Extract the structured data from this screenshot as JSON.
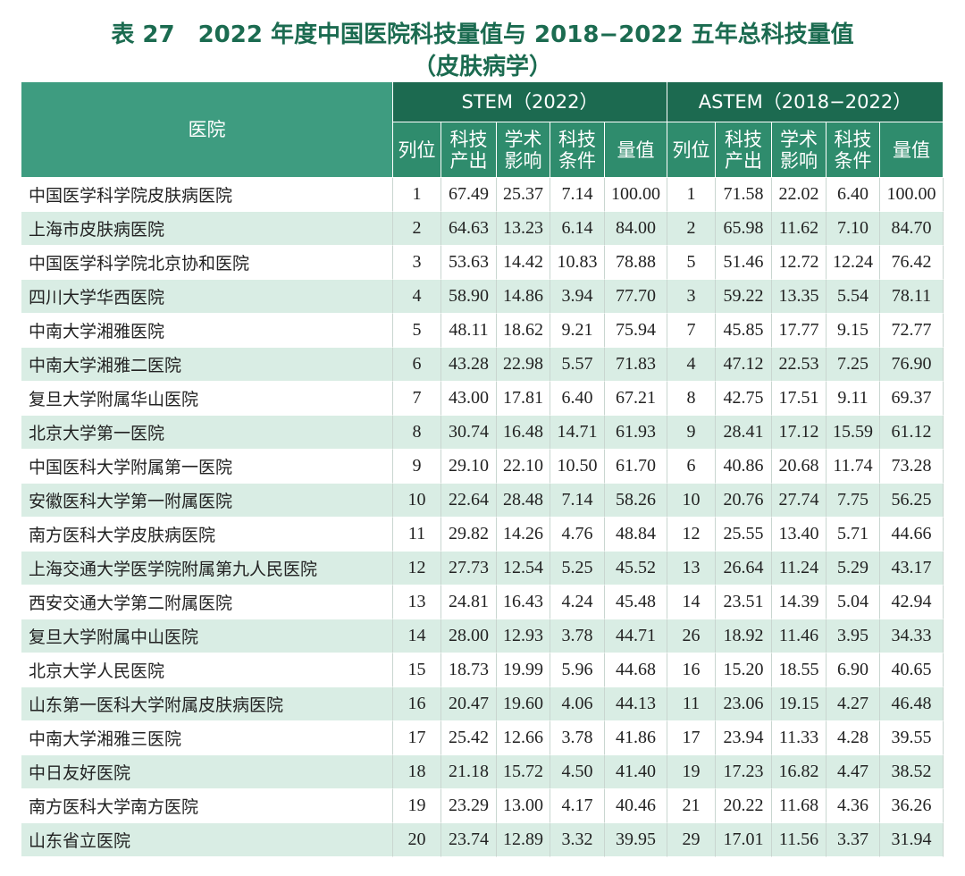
{
  "header": {
    "title": "表 27　2022 年度中国医院科技量值与 2018−2022 五年总科技量值",
    "subtitle": "（皮肤病学）"
  },
  "table": {
    "hospital_header": "医院",
    "groups": [
      {
        "name": "STEM（2022）",
        "columns": [
          [
            "列位"
          ],
          [
            "科技",
            "产出"
          ],
          [
            "学术",
            "影响"
          ],
          [
            "科技",
            "条件"
          ],
          [
            "量值"
          ]
        ]
      },
      {
        "name": "ASTEM（2018−2022）",
        "columns": [
          [
            "列位"
          ],
          [
            "科技",
            "产出"
          ],
          [
            "学术",
            "影响"
          ],
          [
            "科技",
            "条件"
          ],
          [
            "量值"
          ]
        ]
      }
    ],
    "rows": [
      [
        "中国医学科学院皮肤病医院",
        "1",
        "67.49",
        "25.37",
        "7.14",
        "100.00",
        "1",
        "71.58",
        "22.02",
        "6.40",
        "100.00"
      ],
      [
        "上海市皮肤病医院",
        "2",
        "64.63",
        "13.23",
        "6.14",
        "84.00",
        "2",
        "65.98",
        "11.62",
        "7.10",
        "84.70"
      ],
      [
        "中国医学科学院北京协和医院",
        "3",
        "53.63",
        "14.42",
        "10.83",
        "78.88",
        "5",
        "51.46",
        "12.72",
        "12.24",
        "76.42"
      ],
      [
        "四川大学华西医院",
        "4",
        "58.90",
        "14.86",
        "3.94",
        "77.70",
        "3",
        "59.22",
        "13.35",
        "5.54",
        "78.11"
      ],
      [
        "中南大学湘雅医院",
        "5",
        "48.11",
        "18.62",
        "9.21",
        "75.94",
        "7",
        "45.85",
        "17.77",
        "9.15",
        "72.77"
      ],
      [
        "中南大学湘雅二医院",
        "6",
        "43.28",
        "22.98",
        "5.57",
        "71.83",
        "4",
        "47.12",
        "22.53",
        "7.25",
        "76.90"
      ],
      [
        "复旦大学附属华山医院",
        "7",
        "43.00",
        "17.81",
        "6.40",
        "67.21",
        "8",
        "42.75",
        "17.51",
        "9.11",
        "69.37"
      ],
      [
        "北京大学第一医院",
        "8",
        "30.74",
        "16.48",
        "14.71",
        "61.93",
        "9",
        "28.41",
        "17.12",
        "15.59",
        "61.12"
      ],
      [
        "中国医科大学附属第一医院",
        "9",
        "29.10",
        "22.10",
        "10.50",
        "61.70",
        "6",
        "40.86",
        "20.68",
        "11.74",
        "73.28"
      ],
      [
        "安徽医科大学第一附属医院",
        "10",
        "22.64",
        "28.48",
        "7.14",
        "58.26",
        "10",
        "20.76",
        "27.74",
        "7.75",
        "56.25"
      ],
      [
        "南方医科大学皮肤病医院",
        "11",
        "29.82",
        "14.26",
        "4.76",
        "48.84",
        "12",
        "25.55",
        "13.40",
        "5.71",
        "44.66"
      ],
      [
        "上海交通大学医学院附属第九人民医院",
        "12",
        "27.73",
        "12.54",
        "5.25",
        "45.52",
        "13",
        "26.64",
        "11.24",
        "5.29",
        "43.17"
      ],
      [
        "西安交通大学第二附属医院",
        "13",
        "24.81",
        "16.43",
        "4.24",
        "45.48",
        "14",
        "23.51",
        "14.39",
        "5.04",
        "42.94"
      ],
      [
        "复旦大学附属中山医院",
        "14",
        "28.00",
        "12.93",
        "3.78",
        "44.71",
        "26",
        "18.92",
        "11.46",
        "3.95",
        "34.33"
      ],
      [
        "北京大学人民医院",
        "15",
        "18.73",
        "19.99",
        "5.96",
        "44.68",
        "16",
        "15.20",
        "18.55",
        "6.90",
        "40.65"
      ],
      [
        "山东第一医科大学附属皮肤病医院",
        "16",
        "20.47",
        "19.60",
        "4.06",
        "44.13",
        "11",
        "23.06",
        "19.15",
        "4.27",
        "46.48"
      ],
      [
        "中南大学湘雅三医院",
        "17",
        "25.42",
        "12.66",
        "3.78",
        "41.86",
        "17",
        "23.94",
        "11.33",
        "4.28",
        "39.55"
      ],
      [
        "中日友好医院",
        "18",
        "21.18",
        "15.72",
        "4.50",
        "41.40",
        "19",
        "17.23",
        "16.82",
        "4.47",
        "38.52"
      ],
      [
        "南方医科大学南方医院",
        "19",
        "23.29",
        "13.00",
        "4.17",
        "40.46",
        "21",
        "20.22",
        "11.68",
        "4.36",
        "36.26"
      ],
      [
        "山东省立医院",
        "20",
        "23.74",
        "12.89",
        "3.32",
        "39.95",
        "29",
        "17.01",
        "11.56",
        "3.37",
        "31.94"
      ]
    ]
  }
}
